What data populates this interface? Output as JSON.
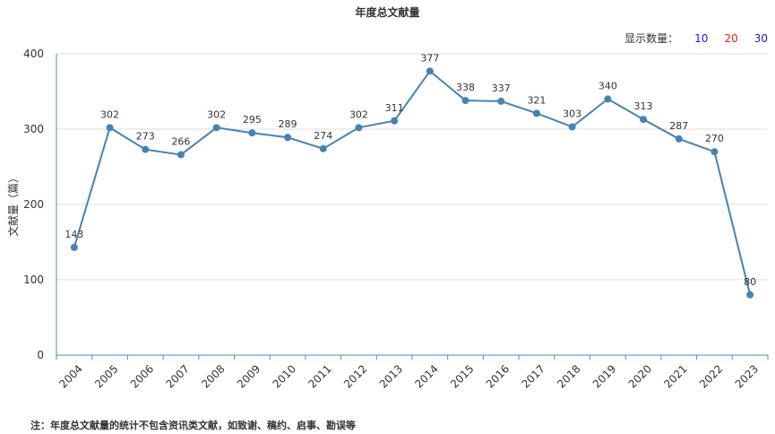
{
  "chart_title": "年度总文献量",
  "count_selector": {
    "label": "显示数量：",
    "options": [
      {
        "label": "10",
        "color": "#1a1aff"
      },
      {
        "label": "20",
        "color": "#e0201b"
      },
      {
        "label": "30",
        "color": "#1a1a99"
      }
    ]
  },
  "note": "注：年度总文献量的统计不包含资讯类文献，如致谢、稿约、启事、勘误等",
  "chart_data": {
    "type": "line",
    "title": "年度总文献量",
    "xlabel": "",
    "ylabel": "文献量（篇）",
    "ylim": [
      0,
      400
    ],
    "yticks": [
      0,
      100,
      200,
      300,
      400
    ],
    "grid": true,
    "line_color": "#4682b4",
    "categories": [
      "2004",
      "2005",
      "2006",
      "2007",
      "2008",
      "2009",
      "2010",
      "2011",
      "2012",
      "2013",
      "2014",
      "2015",
      "2016",
      "2017",
      "2018",
      "2019",
      "2020",
      "2021",
      "2022",
      "2023"
    ],
    "values": [
      143,
      302,
      273,
      266,
      302,
      295,
      289,
      274,
      302,
      311,
      377,
      338,
      337,
      321,
      303,
      340,
      313,
      287,
      270,
      80
    ]
  }
}
